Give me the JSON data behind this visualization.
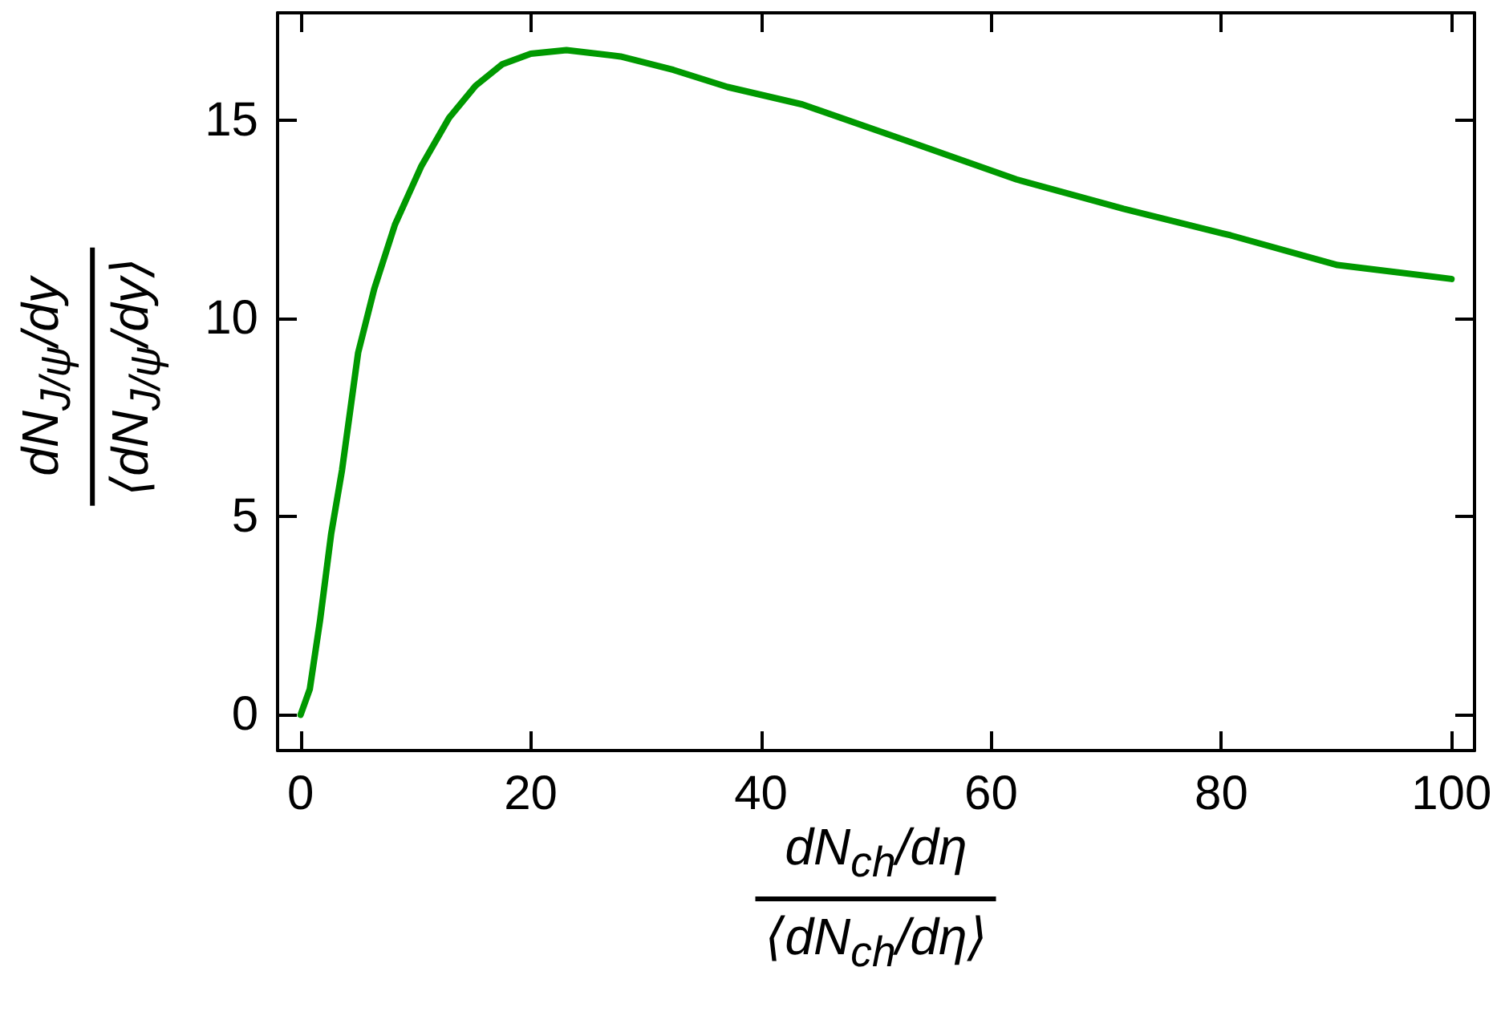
{
  "chart_data": {
    "type": "line",
    "xlabel": "dN$_{ch}$/dη\n⟨dN$_{ch}$/dη⟩",
    "ylabel": "dN$_{J/ψ}$/dy\n⟨dN$_{J/ψ}$/dy⟩",
    "xlim": [
      -2,
      102
    ],
    "ylim": [
      -0.9,
      17.7
    ],
    "xticks": [
      0,
      20,
      40,
      60,
      80,
      100
    ],
    "yticks": [
      0,
      5,
      10,
      15
    ],
    "grid": false,
    "marker": "none",
    "line_style": "solid",
    "series": [
      {
        "color": "#009900",
        "x": [
          0,
          0.8,
          1.7,
          2.65,
          3.6,
          5,
          6.4,
          8.2,
          10.5,
          12.9,
          15.2,
          17.5,
          20,
          23.1,
          27.8,
          32.4,
          37.1,
          43.6,
          52.9,
          62.2,
          71.5,
          80.8,
          90.1,
          100
        ],
        "values": [
          0,
          0.65,
          2.4,
          4.55,
          6.17,
          9.13,
          10.74,
          12.36,
          13.84,
          15.05,
          15.86,
          16.4,
          16.67,
          16.76,
          16.6,
          16.26,
          15.83,
          15.39,
          14.45,
          13.5,
          12.76,
          12.09,
          11.34,
          10.99
        ]
      }
    ]
  }
}
